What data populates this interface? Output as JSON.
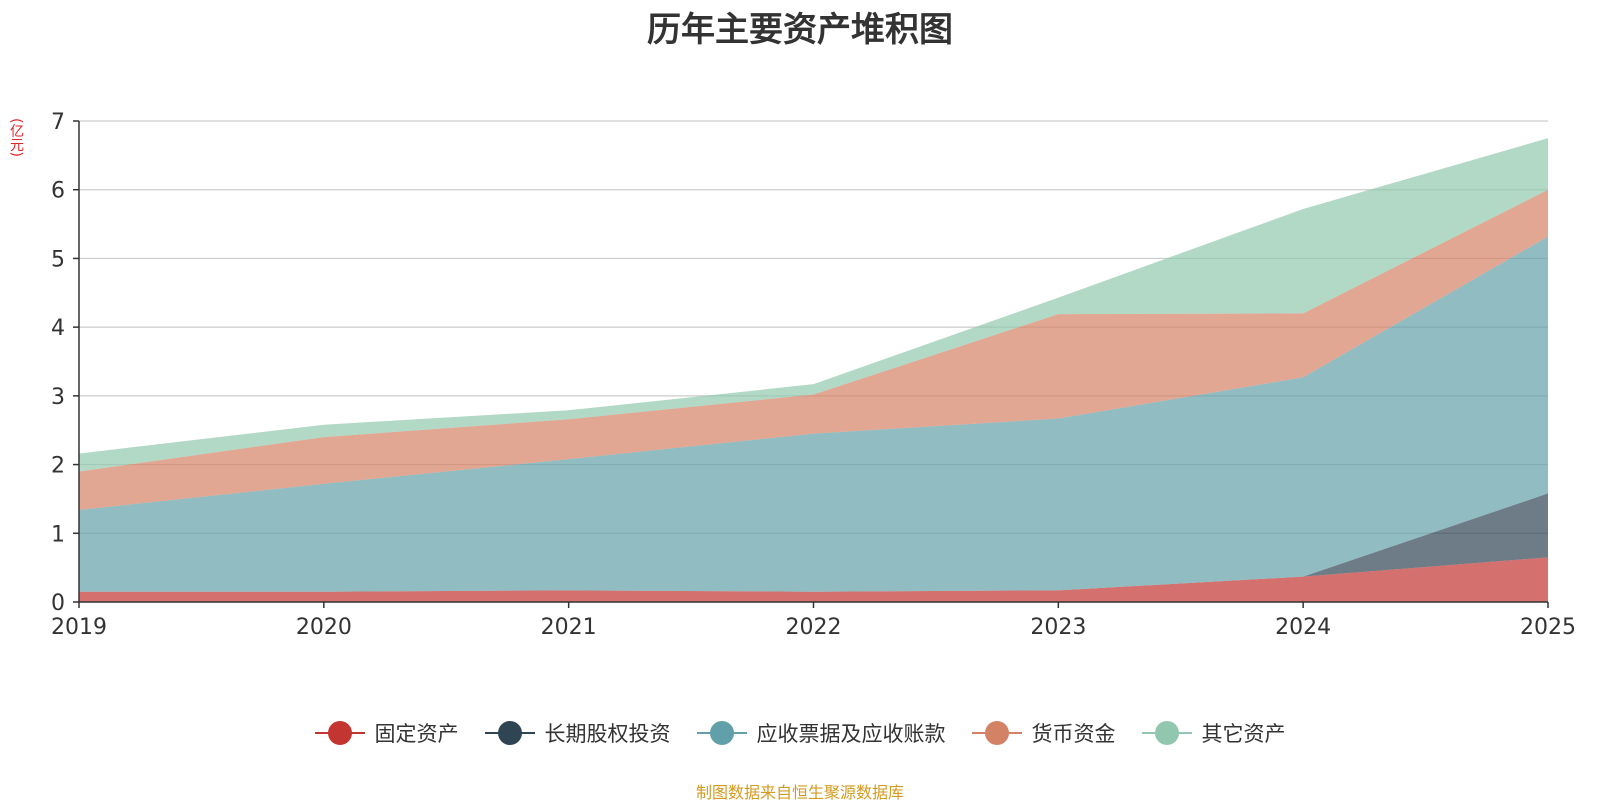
{
  "chart_data": {
    "type": "area",
    "stacked": true,
    "title": "历年主要资产堆积图",
    "unit_label": "(亿元)",
    "x": [
      "2019",
      "2020",
      "2021",
      "2022",
      "2023",
      "2024",
      "2025"
    ],
    "ylim": [
      0,
      7
    ],
    "yticks": [
      "0",
      "1",
      "2",
      "3",
      "4",
      "5",
      "6",
      "7"
    ],
    "grid": true,
    "legend_position": "bottom-center",
    "series": [
      {
        "name": "固定资产",
        "color": "#c23531",
        "values": [
          0.15,
          0.15,
          0.17,
          0.15,
          0.17,
          0.37,
          0.65
        ]
      },
      {
        "name": "长期股权投资",
        "color": "#2f4554",
        "values": [
          0,
          0,
          0,
          0,
          0,
          0,
          0.93
        ]
      },
      {
        "name": "应收票据及应收账款",
        "color": "#61a0a8",
        "values": [
          1.19,
          1.57,
          1.91,
          2.3,
          2.5,
          2.9,
          3.74
        ]
      },
      {
        "name": "货币资金",
        "color": "#d48265",
        "values": [
          0.56,
          0.68,
          0.58,
          0.57,
          1.52,
          0.93,
          0.68
        ]
      },
      {
        "name": "其它资产",
        "color": "#91c7ae",
        "values": [
          0.26,
          0.18,
          0.13,
          0.15,
          0.24,
          1.52,
          0.75
        ]
      }
    ],
    "source": "制图数据来自恒生聚源数据库"
  }
}
